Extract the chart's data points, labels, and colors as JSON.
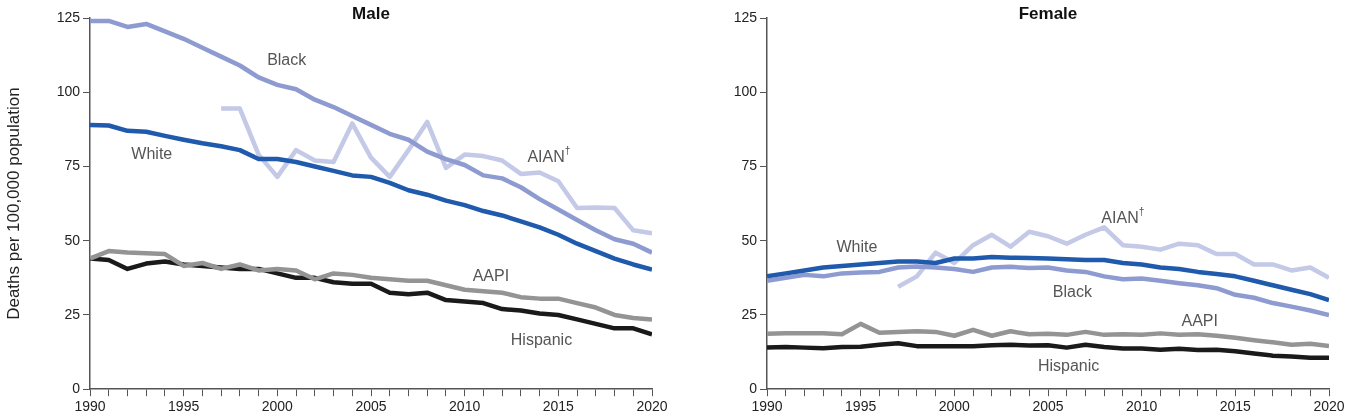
{
  "chart_data": [
    {
      "type": "line",
      "title": "Male",
      "ylabel": "Deaths per 100,000 population",
      "marker": "none",
      "line_style": "solid",
      "grid": false,
      "x": [
        1990,
        1991,
        1992,
        1993,
        1994,
        1995,
        1996,
        1997,
        1998,
        1999,
        2000,
        2001,
        2002,
        2003,
        2004,
        2005,
        2006,
        2007,
        2008,
        2009,
        2010,
        2011,
        2012,
        2013,
        2014,
        2015,
        2016,
        2017,
        2018,
        2019,
        2020
      ],
      "xlim": [
        1990,
        2020
      ],
      "xticks": [
        1990,
        {
          "value": 1991,
          "label": null
        },
        {
          "value": 1992,
          "label": null
        },
        {
          "value": 1993,
          "label": null
        },
        {
          "value": 1994,
          "label": null
        },
        1995,
        {
          "value": 1996,
          "label": null
        },
        {
          "value": 1997,
          "label": null
        },
        {
          "value": 1998,
          "label": null
        },
        {
          "value": 1999,
          "label": null
        },
        2000,
        {
          "value": 2001,
          "label": null
        },
        {
          "value": 2002,
          "label": null
        },
        {
          "value": 2003,
          "label": null
        },
        {
          "value": 2004,
          "label": null
        },
        2005,
        {
          "value": 2006,
          "label": null
        },
        {
          "value": 2007,
          "label": null
        },
        {
          "value": 2008,
          "label": null
        },
        {
          "value": 2009,
          "label": null
        },
        2010,
        {
          "value": 2011,
          "label": null
        },
        {
          "value": 2012,
          "label": null
        },
        {
          "value": 2013,
          "label": null
        },
        {
          "value": 2014,
          "label": null
        },
        2015,
        {
          "value": 2016,
          "label": null
        },
        {
          "value": 2017,
          "label": null
        },
        {
          "value": 2018,
          "label": null
        },
        {
          "value": 2019,
          "label": null
        },
        2020
      ],
      "ylim": [
        0,
        125
      ],
      "yticks": [
        0,
        25,
        50,
        75,
        100,
        125
      ],
      "series": [
        {
          "name": "Black",
          "color": "#8d9bd1",
          "values": [
            124,
            124,
            122,
            123,
            120.5,
            118,
            115,
            112,
            109,
            105,
            102.5,
            101,
            97.5,
            95,
            92,
            89,
            86,
            84,
            80,
            77.5,
            75.5,
            72,
            71,
            68,
            64,
            60.5,
            57,
            53.5,
            50.5,
            49,
            46
          ]
        },
        {
          "name": "White",
          "color": "#1f5aad",
          "values": [
            89,
            88.8,
            87,
            86.7,
            85.3,
            84,
            82.8,
            81.8,
            80.5,
            77.5,
            77.5,
            76.5,
            75,
            73.5,
            72,
            71.5,
            69.5,
            67,
            65.5,
            63.5,
            62,
            60,
            58.5,
            56.5,
            54.5,
            52,
            49,
            46.5,
            44,
            42,
            40.3
          ]
        },
        {
          "name": "AIAN$^{†}$",
          "color": "#c3c9e6",
          "values": [
            null,
            null,
            null,
            null,
            null,
            null,
            null,
            94.5,
            94.5,
            79,
            71.5,
            80.5,
            77,
            76.5,
            89.5,
            78,
            71.5,
            80.5,
            90,
            74.5,
            79,
            78.5,
            77,
            72.5,
            73,
            70,
            61,
            61.2,
            61,
            53.5,
            52.5
          ]
        },
        {
          "name": "AAPI",
          "color": "#949494",
          "values": [
            44,
            46.5,
            46,
            45.8,
            45.5,
            41.5,
            42.5,
            40.5,
            42,
            40,
            40.5,
            40,
            37,
            39,
            38.5,
            37.5,
            37,
            36.5,
            36.5,
            35,
            33.5,
            33,
            32.5,
            31,
            30.5,
            30.5,
            29,
            27.5,
            25,
            24,
            23.5
          ]
        },
        {
          "name": "Hispanic",
          "color": "#1a1a1a",
          "values": [
            44,
            43.5,
            40.5,
            42.3,
            43,
            42,
            41.5,
            41,
            40.5,
            40.5,
            39,
            37.5,
            37.5,
            36,
            35.5,
            35.5,
            32.5,
            32,
            32.5,
            30,
            29.5,
            29,
            27,
            26.5,
            25.5,
            25,
            23.5,
            22,
            20.5,
            20.5,
            18.5
          ]
        }
      ]
    },
    {
      "type": "line",
      "title": "Female",
      "marker": "none",
      "line_style": "solid",
      "grid": false,
      "x": [
        1990,
        1991,
        1992,
        1993,
        1994,
        1995,
        1996,
        1997,
        1998,
        1999,
        2000,
        2001,
        2002,
        2003,
        2004,
        2005,
        2006,
        2007,
        2008,
        2009,
        2010,
        2011,
        2012,
        2013,
        2014,
        2015,
        2016,
        2017,
        2018,
        2019,
        2020
      ],
      "xlim": [
        1990,
        2020
      ],
      "xticks": [
        1990,
        {
          "value": 1991,
          "label": null
        },
        {
          "value": 1992,
          "label": null
        },
        {
          "value": 1993,
          "label": null
        },
        {
          "value": 1994,
          "label": null
        },
        1995,
        {
          "value": 1996,
          "label": null
        },
        {
          "value": 1997,
          "label": null
        },
        {
          "value": 1998,
          "label": null
        },
        {
          "value": 1999,
          "label": null
        },
        2000,
        {
          "value": 2001,
          "label": null
        },
        {
          "value": 2002,
          "label": null
        },
        {
          "value": 2003,
          "label": null
        },
        {
          "value": 2004,
          "label": null
        },
        2005,
        {
          "value": 2006,
          "label": null
        },
        {
          "value": 2007,
          "label": null
        },
        {
          "value": 2008,
          "label": null
        },
        {
          "value": 2009,
          "label": null
        },
        2010,
        {
          "value": 2011,
          "label": null
        },
        {
          "value": 2012,
          "label": null
        },
        {
          "value": 2013,
          "label": null
        },
        {
          "value": 2014,
          "label": null
        },
        2015,
        {
          "value": 2016,
          "label": null
        },
        {
          "value": 2017,
          "label": null
        },
        {
          "value": 2018,
          "label": null
        },
        {
          "value": 2019,
          "label": null
        },
        2020
      ],
      "ylim": [
        0,
        125
      ],
      "yticks": [
        0,
        25,
        50,
        75,
        100,
        125
      ],
      "series": [
        {
          "name": "White",
          "color": "#1f5aad",
          "values": [
            38,
            39,
            40,
            41,
            41.5,
            42,
            42.5,
            43,
            43,
            42.5,
            44,
            44,
            44.5,
            44.3,
            44.2,
            44,
            43.8,
            43.5,
            43.5,
            42.5,
            42,
            41,
            40.5,
            39.5,
            38.8,
            38,
            36.5,
            35,
            33.5,
            32,
            30
          ]
        },
        {
          "name": "Black",
          "color": "#8d9bd1",
          "values": [
            36.5,
            37.5,
            38.5,
            38,
            39,
            39.3,
            39.5,
            41,
            41.3,
            41,
            40.5,
            39.5,
            41,
            41.2,
            40.8,
            41,
            40,
            39.5,
            38,
            37,
            37.3,
            36.5,
            35.7,
            35,
            34,
            31.8,
            30.8,
            29,
            27.8,
            26.5,
            25
          ]
        },
        {
          "name": "AIAN$^{†}$",
          "color": "#c3c9e6",
          "values": [
            null,
            null,
            null,
            null,
            null,
            null,
            null,
            34.5,
            38,
            46,
            42.5,
            48.5,
            52,
            48,
            53,
            51.5,
            49,
            52,
            54.5,
            48.5,
            48,
            47,
            49,
            48.5,
            45.5,
            45.5,
            42,
            42,
            40,
            41,
            37.5
          ]
        },
        {
          "name": "AAPI",
          "color": "#949494",
          "values": [
            18.7,
            18.8,
            18.8,
            18.8,
            18.5,
            22,
            19,
            19.3,
            19.5,
            19.3,
            18,
            20,
            18,
            19.5,
            18.5,
            18.7,
            18.3,
            19.3,
            18.3,
            18.5,
            18.3,
            18.8,
            18.3,
            18.5,
            18,
            17.3,
            16.5,
            15.8,
            15,
            15.3,
            14.5
          ]
        },
        {
          "name": "Hispanic",
          "color": "#1a1a1a",
          "values": [
            14,
            14.2,
            14,
            13.8,
            14.2,
            14.3,
            15,
            15.5,
            14.5,
            14.5,
            14.5,
            14.5,
            14.8,
            15,
            14.7,
            14.8,
            14,
            15,
            14.2,
            13.7,
            13.7,
            13.3,
            13.6,
            13.2,
            13.3,
            12.8,
            12,
            11.3,
            11,
            10.6,
            10.6
          ]
        }
      ]
    }
  ]
}
